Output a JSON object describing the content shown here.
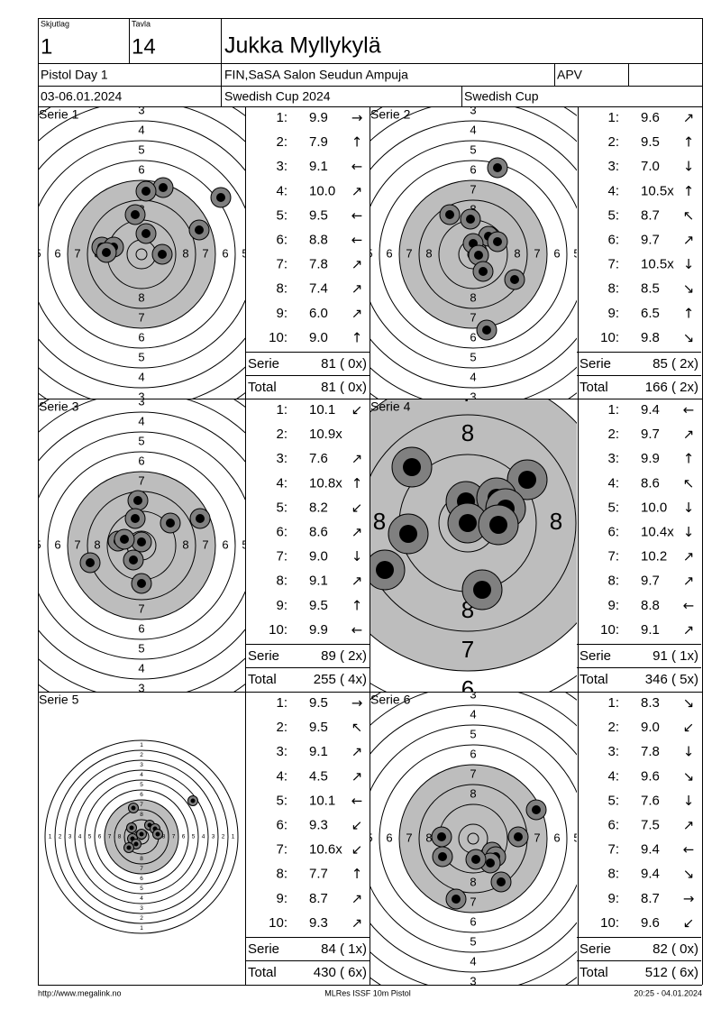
{
  "header": {
    "squad_label": "Skjutlag",
    "squad": "1",
    "target_label": "Tavla",
    "target": "14",
    "name": "Jukka Myllykylä",
    "event": "Pistol Day 1",
    "club": "FIN,SaSA Salon Seudun Ampuja",
    "class": "APV",
    "dates": "03-06.01.2024",
    "competition": "Swedish Cup 2024",
    "cup": "Swedish Cup"
  },
  "ring_numbers": [
    1,
    2,
    3,
    4,
    5,
    6,
    7,
    8
  ],
  "series": [
    {
      "label": "Serie 1",
      "shots": [
        {
          "n": "1:",
          "value": "9.9",
          "arrow": "→"
        },
        {
          "n": "2:",
          "value": "7.9",
          "arrow": "↑"
        },
        {
          "n": "3:",
          "value": "9.1",
          "arrow": "←"
        },
        {
          "n": "4:",
          "value": "10.0",
          "arrow": "↗"
        },
        {
          "n": "5:",
          "value": "9.5",
          "arrow": "←"
        },
        {
          "n": "6:",
          "value": "8.8",
          "arrow": "←"
        },
        {
          "n": "7:",
          "value": "7.8",
          "arrow": "↗"
        },
        {
          "n": "8:",
          "value": "7.4",
          "arrow": "↗"
        },
        {
          "n": "9:",
          "value": "6.0",
          "arrow": "↗"
        },
        {
          "n": "10:",
          "value": "9.0",
          "arrow": "↑"
        }
      ],
      "serie_label": "Serie",
      "serie": "81 ( 0x)",
      "total_label": "Total",
      "total": "81 ( 0x)"
    },
    {
      "label": "Serie 2",
      "shots": [
        {
          "n": "1:",
          "value": "9.6",
          "arrow": "↗"
        },
        {
          "n": "2:",
          "value": "9.5",
          "arrow": "↑"
        },
        {
          "n": "3:",
          "value": "7.0",
          "arrow": "↓"
        },
        {
          "n": "4:",
          "value": "10.5x",
          "arrow": "↑"
        },
        {
          "n": "5:",
          "value": "8.7",
          "arrow": "↖"
        },
        {
          "n": "6:",
          "value": "9.7",
          "arrow": "↗"
        },
        {
          "n": "7:",
          "value": "10.5x",
          "arrow": "↓"
        },
        {
          "n": "8:",
          "value": "8.5",
          "arrow": "↘"
        },
        {
          "n": "9:",
          "value": "6.5",
          "arrow": "↑"
        },
        {
          "n": "10:",
          "value": "9.8",
          "arrow": "↘"
        }
      ],
      "serie_label": "Serie",
      "serie": "85 ( 2x)",
      "total_label": "Total",
      "total": "166 ( 2x)"
    },
    {
      "label": "Serie 3",
      "shots": [
        {
          "n": "1:",
          "value": "10.1",
          "arrow": "↙"
        },
        {
          "n": "2:",
          "value": "10.9x",
          "arrow": null
        },
        {
          "n": "3:",
          "value": "7.6",
          "arrow": "↗"
        },
        {
          "n": "4:",
          "value": "10.8x",
          "arrow": "↑"
        },
        {
          "n": "5:",
          "value": "8.2",
          "arrow": "↙"
        },
        {
          "n": "6:",
          "value": "8.6",
          "arrow": "↗"
        },
        {
          "n": "7:",
          "value": "9.0",
          "arrow": "↓"
        },
        {
          "n": "8:",
          "value": "9.1",
          "arrow": "↗"
        },
        {
          "n": "9:",
          "value": "9.5",
          "arrow": "↑"
        },
        {
          "n": "10:",
          "value": "9.9",
          "arrow": "←"
        }
      ],
      "serie_label": "Serie",
      "serie": "89 ( 2x)",
      "total_label": "Total",
      "total": "255 ( 4x)"
    },
    {
      "label": "Serie 4",
      "shots": [
        {
          "n": "1:",
          "value": "9.4",
          "arrow": "←"
        },
        {
          "n": "2:",
          "value": "9.7",
          "arrow": "↗"
        },
        {
          "n": "3:",
          "value": "9.9",
          "arrow": "↑"
        },
        {
          "n": "4:",
          "value": "8.6",
          "arrow": "↖"
        },
        {
          "n": "5:",
          "value": "10.0",
          "arrow": "↓"
        },
        {
          "n": "6:",
          "value": "10.4x",
          "arrow": "↓"
        },
        {
          "n": "7:",
          "value": "10.2",
          "arrow": "↗"
        },
        {
          "n": "8:",
          "value": "9.7",
          "arrow": "↗"
        },
        {
          "n": "9:",
          "value": "8.8",
          "arrow": "←"
        },
        {
          "n": "10:",
          "value": "9.1",
          "arrow": "↗"
        }
      ],
      "serie_label": "Serie",
      "serie": "91 ( 1x)",
      "total_label": "Total",
      "total": "346 ( 5x)"
    },
    {
      "label": "Serie 5",
      "shots": [
        {
          "n": "1:",
          "value": "9.5",
          "arrow": "→"
        },
        {
          "n": "2:",
          "value": "9.5",
          "arrow": "↖"
        },
        {
          "n": "3:",
          "value": "9.1",
          "arrow": "↗"
        },
        {
          "n": "4:",
          "value": "4.5",
          "arrow": "↗"
        },
        {
          "n": "5:",
          "value": "10.1",
          "arrow": "←"
        },
        {
          "n": "6:",
          "value": "9.3",
          "arrow": "↙"
        },
        {
          "n": "7:",
          "value": "10.6x",
          "arrow": "↙"
        },
        {
          "n": "8:",
          "value": "7.7",
          "arrow": "↑"
        },
        {
          "n": "9:",
          "value": "8.7",
          "arrow": "↗"
        },
        {
          "n": "10:",
          "value": "9.3",
          "arrow": "↗"
        }
      ],
      "serie_label": "Serie",
      "serie": "84 ( 1x)",
      "total_label": "Total",
      "total": "430 ( 6x)"
    },
    {
      "label": "Serie 6",
      "shots": [
        {
          "n": "1:",
          "value": "8.3",
          "arrow": "↘"
        },
        {
          "n": "2:",
          "value": "9.0",
          "arrow": "↙"
        },
        {
          "n": "3:",
          "value": "7.8",
          "arrow": "↓"
        },
        {
          "n": "4:",
          "value": "9.6",
          "arrow": "↘"
        },
        {
          "n": "5:",
          "value": "7.6",
          "arrow": "↓"
        },
        {
          "n": "6:",
          "value": "7.5",
          "arrow": "↗"
        },
        {
          "n": "7:",
          "value": "9.4",
          "arrow": "←"
        },
        {
          "n": "8:",
          "value": "9.4",
          "arrow": "↘"
        },
        {
          "n": "9:",
          "value": "8.7",
          "arrow": "→"
        },
        {
          "n": "10:",
          "value": "9.6",
          "arrow": "↙"
        }
      ],
      "serie_label": "Serie",
      "serie": "82 ( 0x)",
      "total_label": "Total",
      "total": "512 ( 6x)"
    }
  ],
  "footer": {
    "url": "http://www.megalink.no",
    "software": "MLRes ISSF 10m Pistol",
    "timestamp": "20:25 - 04.01.2024"
  }
}
